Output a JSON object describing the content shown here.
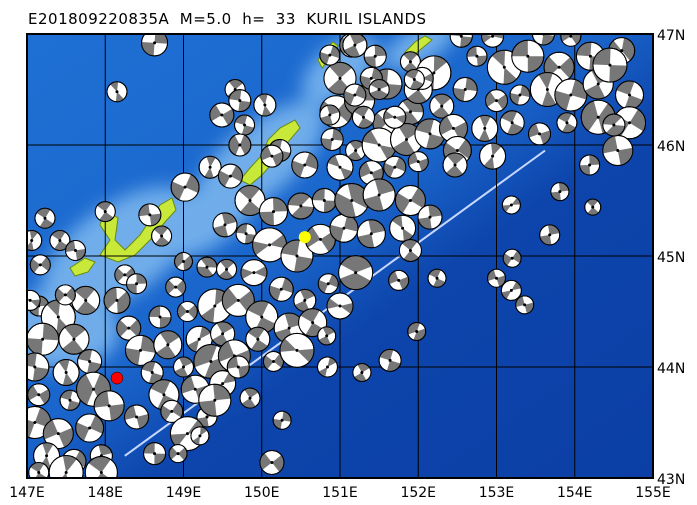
{
  "title": "E201809220835A  M=5.0  h=  33  KURIL ISLANDS",
  "map": {
    "lon_range": [
      147,
      155
    ],
    "lat_range": [
      43,
      47
    ],
    "lon_ticks": [
      "147E",
      "148E",
      "149E",
      "150E",
      "151E",
      "152E",
      "153E",
      "154E",
      "155E"
    ],
    "lat_ticks": [
      "47N",
      "46N",
      "45N",
      "44N",
      "43N"
    ],
    "colors": {
      "deep_ocean": "#0b3fa6",
      "mid_ocean": "#1a6ad0",
      "shallow": "#8fc4f5",
      "land": "#c8e83a",
      "mechanism_fill": "#777777",
      "trench_line": "#c8d8ff"
    },
    "main_event": {
      "lon": 150.55,
      "lat": 45.17,
      "color": "#ffff00"
    },
    "reference_point": {
      "lon": 148.15,
      "lat": 43.9,
      "color": "#ff0000"
    },
    "trench_line": [
      [
        148.25,
        43.2
      ],
      [
        153.62,
        45.95
      ]
    ]
  },
  "labeled_events": [
    [
      148.15,
      46.48,
      "271",
      10
    ],
    [
      148.63,
      46.92,
      "",
      13
    ],
    [
      149.66,
      46.5,
      "175",
      10
    ],
    [
      149.72,
      46.4,
      "178",
      11
    ],
    [
      150.04,
      46.36,
      "162",
      11
    ],
    [
      150.23,
      45.95,
      "63",
      11
    ],
    [
      149.49,
      46.27,
      "15",
      12
    ],
    [
      149.78,
      46.18,
      "10",
      10
    ],
    [
      149.72,
      46.0,
      "",
      11
    ],
    [
      150.55,
      45.82,
      "97",
      13
    ],
    [
      150.13,
      45.9,
      "100",
      11
    ],
    [
      149.02,
      45.62,
      "145",
      14
    ],
    [
      149.34,
      45.8,
      "180",
      11
    ],
    [
      149.6,
      45.72,
      "31",
      12
    ],
    [
      149.53,
      45.28,
      "105",
      12
    ],
    [
      147.23,
      45.34,
      "23",
      10
    ],
    [
      147.06,
      45.14,
      "18",
      10
    ],
    [
      148.0,
      45.4,
      "145",
      10
    ],
    [
      148.57,
      45.37,
      "130",
      11
    ],
    [
      148.72,
      45.18,
      "133",
      10
    ],
    [
      149.0,
      44.95,
      "95",
      9
    ],
    [
      148.25,
      44.83,
      "88",
      10
    ],
    [
      148.63,
      43.22,
      "15",
      11
    ],
    [
      148.93,
      43.22,
      "41",
      9
    ],
    [
      149.21,
      43.38,
      "15",
      9
    ],
    [
      150.13,
      43.14,
      "11",
      12
    ],
    [
      150.26,
      43.52,
      "18",
      9
    ],
    [
      149.85,
      43.72,
      "34",
      10
    ],
    [
      150.84,
      44.0,
      "12",
      10
    ],
    [
      151.28,
      43.95,
      "21",
      9
    ],
    [
      151.64,
      44.06,
      "18",
      11
    ],
    [
      150.83,
      44.28,
      "12",
      9
    ],
    [
      151.98,
      44.32,
      "26",
      9
    ],
    [
      151.75,
      44.78,
      "31",
      10
    ],
    [
      152.24,
      44.8,
      "12",
      9
    ],
    [
      153.0,
      44.8,
      "24",
      9
    ],
    [
      153.19,
      44.69,
      "30",
      10
    ],
    [
      153.36,
      44.56,
      "19",
      9
    ],
    [
      153.2,
      44.98,
      "26",
      9
    ],
    [
      153.68,
      45.19,
      "35",
      10
    ],
    [
      153.19,
      45.46,
      "28",
      9
    ],
    [
      153.81,
      45.58,
      "12",
      9
    ],
    [
      154.23,
      45.44,
      "12",
      8
    ],
    [
      154.19,
      45.82,
      "13",
      10
    ],
    [
      154.5,
      46.18,
      "38",
      11
    ],
    [
      154.45,
      46.72,
      "",
      17
    ],
    [
      152.47,
      45.82,
      "47",
      12
    ],
    [
      152.55,
      46.98,
      "20",
      11
    ],
    [
      152.95,
      46.98,
      "49",
      11
    ],
    [
      153.6,
      47.0,
      "39",
      11
    ],
    [
      153.95,
      46.98,
      "29",
      10
    ],
    [
      151.4,
      46.6,
      "41",
      11
    ],
    [
      152.05,
      46.6,
      "53",
      11
    ],
    [
      150.87,
      46.81,
      "146",
      10
    ],
    [
      151.19,
      46.9,
      "129",
      12
    ],
    [
      151.19,
      46.45,
      "11",
      11
    ],
    [
      151.5,
      46.5,
      "126",
      10
    ],
    [
      151.95,
      46.59,
      "79",
      10
    ],
    [
      150.87,
      46.27,
      "94",
      10
    ],
    [
      151.3,
      46.25,
      "87",
      11
    ],
    [
      151.7,
      46.25,
      "98",
      11
    ],
    [
      147.42,
      45.14,
      "154",
      10
    ],
    [
      147.62,
      45.05,
      "143",
      10
    ],
    [
      147.17,
      44.92,
      "14",
      10
    ],
    [
      147.04,
      44.6,
      "103",
      10
    ],
    [
      147.49,
      44.65,
      "106",
      10
    ],
    [
      148.4,
      44.75,
      "58",
      10
    ],
    [
      148.9,
      44.72,
      "56",
      10
    ],
    [
      149.3,
      44.9,
      "77",
      10
    ],
    [
      149.55,
      44.88,
      "47",
      10
    ]
  ],
  "events": [
    [
      147.15,
      44.55
    ],
    [
      147.4,
      44.45
    ],
    [
      147.2,
      44.25
    ],
    [
      147.6,
      44.25
    ],
    [
      147.1,
      44.0
    ],
    [
      147.5,
      43.95
    ],
    [
      147.8,
      44.05
    ],
    [
      147.15,
      43.75
    ],
    [
      147.55,
      43.7
    ],
    [
      147.85,
      43.8
    ],
    [
      147.1,
      43.5
    ],
    [
      147.4,
      43.4
    ],
    [
      147.8,
      43.45
    ],
    [
      147.25,
      43.2
    ],
    [
      147.6,
      43.15
    ],
    [
      147.95,
      43.2
    ],
    [
      147.15,
      43.05
    ],
    [
      147.5,
      43.05
    ],
    [
      147.95,
      43.05
    ],
    [
      148.05,
      43.65
    ],
    [
      147.75,
      44.6
    ],
    [
      148.15,
      44.6
    ],
    [
      148.3,
      44.35
    ],
    [
      148.7,
      44.45
    ],
    [
      149.05,
      44.5
    ],
    [
      149.4,
      44.55
    ],
    [
      149.7,
      44.6
    ],
    [
      148.45,
      44.15
    ],
    [
      148.8,
      44.2
    ],
    [
      149.2,
      44.25
    ],
    [
      149.5,
      44.3
    ],
    [
      148.6,
      43.95
    ],
    [
      149.0,
      44.0
    ],
    [
      149.35,
      44.05
    ],
    [
      149.65,
      44.1
    ],
    [
      148.75,
      43.75
    ],
    [
      149.15,
      43.8
    ],
    [
      149.5,
      43.85
    ],
    [
      148.4,
      43.55
    ],
    [
      148.85,
      43.6
    ],
    [
      149.3,
      43.55
    ],
    [
      149.05,
      43.4
    ],
    [
      149.4,
      43.7
    ],
    [
      149.85,
      45.5
    ],
    [
      150.15,
      45.4
    ],
    [
      150.5,
      45.45
    ],
    [
      150.8,
      45.5
    ],
    [
      151.1,
      45.55
    ],
    [
      149.8,
      45.2
    ],
    [
      150.1,
      45.1
    ],
    [
      150.45,
      45.0
    ],
    [
      150.75,
      45.15
    ],
    [
      151.05,
      45.25
    ],
    [
      149.9,
      44.85
    ],
    [
      150.25,
      44.7
    ],
    [
      150.55,
      44.6
    ],
    [
      150.85,
      44.75
    ],
    [
      151.2,
      44.85
    ],
    [
      150.0,
      44.45
    ],
    [
      150.35,
      44.35
    ],
    [
      150.65,
      44.4
    ],
    [
      151.0,
      44.55
    ],
    [
      149.95,
      44.25
    ],
    [
      149.7,
      44.0
    ],
    [
      150.15,
      44.05
    ],
    [
      150.45,
      44.15
    ],
    [
      150.95,
      46.3
    ],
    [
      151.25,
      46.4
    ],
    [
      151.6,
      46.2
    ],
    [
      151.9,
      46.3
    ],
    [
      152.3,
      46.35
    ],
    [
      150.9,
      46.05
    ],
    [
      151.2,
      45.95
    ],
    [
      151.5,
      46.0
    ],
    [
      151.85,
      46.05
    ],
    [
      152.15,
      46.1
    ],
    [
      152.45,
      46.15
    ],
    [
      151.0,
      45.8
    ],
    [
      151.4,
      45.75
    ],
    [
      151.7,
      45.8
    ],
    [
      152.0,
      45.85
    ],
    [
      151.15,
      45.5
    ],
    [
      151.5,
      45.55
    ],
    [
      151.9,
      45.5
    ],
    [
      151.4,
      45.2
    ],
    [
      151.8,
      45.25
    ],
    [
      152.15,
      45.35
    ],
    [
      151.9,
      45.05
    ],
    [
      152.75,
      46.8
    ],
    [
      153.1,
      46.7
    ],
    [
      153.4,
      46.8
    ],
    [
      153.8,
      46.7
    ],
    [
      154.2,
      46.8
    ],
    [
      154.6,
      46.85
    ],
    [
      152.6,
      46.5
    ],
    [
      153.0,
      46.4
    ],
    [
      153.3,
      46.45
    ],
    [
      153.65,
      46.5
    ],
    [
      153.95,
      46.45
    ],
    [
      154.3,
      46.55
    ],
    [
      154.7,
      46.45
    ],
    [
      152.85,
      46.15
    ],
    [
      153.2,
      46.2
    ],
    [
      153.55,
      46.1
    ],
    [
      153.9,
      46.2
    ],
    [
      154.3,
      46.25
    ],
    [
      154.7,
      46.2
    ],
    [
      154.55,
      45.95
    ],
    [
      152.5,
      45.95
    ],
    [
      152.95,
      45.9
    ],
    [
      151.15,
      46.9
    ],
    [
      151.45,
      46.8
    ],
    [
      151.9,
      46.75
    ],
    [
      152.2,
      46.65
    ],
    [
      151.0,
      46.6
    ],
    [
      151.6,
      46.55
    ],
    [
      152.0,
      46.5
    ]
  ]
}
